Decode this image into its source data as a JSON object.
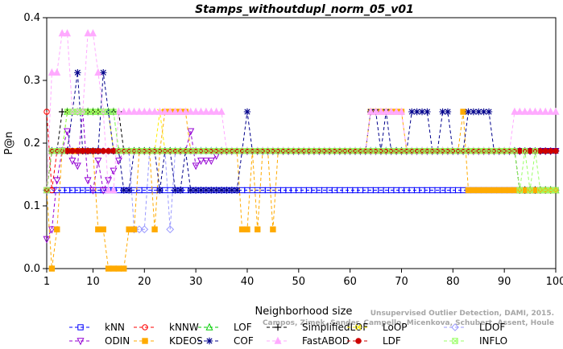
{
  "chart_data": {
    "type": "line",
    "title": "Stamps_withoutdupl_norm_05_v01",
    "xlabel": "Neighborhood size",
    "ylabel": "P@n",
    "xlim": [
      1,
      100
    ],
    "ylim": [
      0,
      0.4
    ],
    "xticks": [
      1,
      10,
      20,
      30,
      40,
      50,
      60,
      70,
      80,
      90,
      100
    ],
    "yticks": [
      0.0,
      0.1,
      0.2,
      0.3,
      0.4
    ],
    "ytick_labels": [
      "0.0",
      "0.1",
      "0.2",
      "0.3",
      "0.4"
    ],
    "credit": "Campos, Zimek, Sander, Campello, Micenkova, Schubert, Assent, Houle: On the Evaluation of Unsupervised Outlier Detection, DAMI, 2015.",
    "credit_lines": [
      "Unsupervised Outlier Detection, DAMI, 2015.",
      "Campos, Zimek, Sander, Campello, Micenkova, Schubert, Assent, Houle"
    ],
    "legend_position": "bottom",
    "series": [
      {
        "name": "kNN",
        "color": "#0000ff",
        "marker": "square",
        "segments": [
          [
            1,
            100,
            0.125
          ]
        ]
      },
      {
        "name": "kNNW",
        "color": "#ff0000",
        "marker": "circle",
        "segments": [
          [
            1,
            1,
            0.25
          ],
          [
            2,
            2,
            0.125
          ],
          [
            3,
            100,
            0.1875
          ]
        ]
      },
      {
        "name": "LOF",
        "color": "#00cc00",
        "marker": "triangle",
        "segments": [
          [
            1,
            1,
            0.125
          ],
          [
            2,
            4,
            0.1875
          ],
          [
            5,
            14,
            0.25
          ],
          [
            15,
            92,
            0.1875
          ],
          [
            93,
            100,
            0.125
          ]
        ]
      },
      {
        "name": "SimplifiedLOF",
        "color": "#000000",
        "marker": "plus",
        "segments": [
          [
            1,
            1,
            0.125
          ],
          [
            2,
            3,
            0.1875
          ],
          [
            4,
            15,
            0.25
          ],
          [
            16,
            92,
            0.1875
          ],
          [
            93,
            100,
            0.125
          ]
        ]
      },
      {
        "name": "LoOP",
        "color": "#ffee00",
        "marker": "x",
        "segments": [
          [
            1,
            1,
            0.125
          ],
          [
            2,
            4,
            0.1875
          ],
          [
            5,
            13,
            0.25
          ],
          [
            14,
            22,
            0.1875
          ],
          [
            23,
            23,
            0.25
          ],
          [
            24,
            100,
            0.1875
          ]
        ]
      },
      {
        "name": "LDOF",
        "color": "#9999ff",
        "marker": "diamond",
        "segments": [
          [
            1,
            1,
            0.125
          ],
          [
            2,
            17,
            0.1875
          ],
          [
            18,
            20,
            0.0625
          ],
          [
            21,
            24,
            0.1875
          ],
          [
            25,
            25,
            0.0625
          ],
          [
            26,
            100,
            0.1875
          ]
        ]
      },
      {
        "name": "ODIN",
        "color": "#9400d3",
        "marker": "triangle-down",
        "segments": [
          [
            1,
            1,
            0.047
          ],
          [
            2,
            2,
            0.0625
          ],
          [
            3,
            3,
            0.141
          ],
          [
            4,
            4,
            0.188
          ],
          [
            5,
            5,
            0.219
          ],
          [
            6,
            6,
            0.172
          ],
          [
            7,
            7,
            0.164
          ],
          [
            8,
            8,
            0.25
          ],
          [
            9,
            9,
            0.141
          ],
          [
            10,
            10,
            0.125
          ],
          [
            11,
            11,
            0.172
          ],
          [
            12,
            12,
            0.125
          ],
          [
            13,
            13,
            0.141
          ],
          [
            14,
            14,
            0.156
          ],
          [
            15,
            15,
            0.172
          ],
          [
            16,
            28,
            0.1875
          ],
          [
            29,
            29,
            0.219
          ],
          [
            30,
            30,
            0.164
          ],
          [
            31,
            31,
            0.172
          ],
          [
            32,
            32,
            0.172
          ],
          [
            33,
            33,
            0.172
          ],
          [
            34,
            34,
            0.18
          ],
          [
            35,
            100,
            0.1875
          ]
        ]
      },
      {
        "name": "KDEOS",
        "color": "#ffaa00",
        "marker": "square-filled",
        "segments": [
          [
            1,
            1,
            0.125
          ],
          [
            2,
            2,
            0.0
          ],
          [
            3,
            3,
            0.0625
          ],
          [
            4,
            4,
            0.1875
          ],
          [
            5,
            10,
            0.1875
          ],
          [
            11,
            12,
            0.0625
          ],
          [
            13,
            16,
            0.0
          ],
          [
            17,
            18,
            0.0625
          ],
          [
            19,
            21,
            0.1875
          ],
          [
            22,
            22,
            0.0625
          ],
          [
            23,
            23,
            0.1875
          ],
          [
            24,
            28,
            0.25
          ],
          [
            29,
            38,
            0.1875
          ],
          [
            39,
            40,
            0.0625
          ],
          [
            41,
            41,
            0.1875
          ],
          [
            42,
            42,
            0.0625
          ],
          [
            43,
            44,
            0.1875
          ],
          [
            45,
            45,
            0.0625
          ],
          [
            46,
            63,
            0.1875
          ],
          [
            64,
            70,
            0.25
          ],
          [
            71,
            81,
            0.1875
          ],
          [
            82,
            82,
            0.25
          ],
          [
            83,
            90,
            0.125
          ],
          [
            91,
            100,
            0.125
          ]
        ]
      },
      {
        "name": "COF",
        "color": "#00008b",
        "marker": "asterisk",
        "segments": [
          [
            1,
            1,
            0.125
          ],
          [
            2,
            5,
            0.1875
          ],
          [
            6,
            6,
            0.25
          ],
          [
            7,
            7,
            0.3125
          ],
          [
            8,
            11,
            0.1875
          ],
          [
            12,
            12,
            0.3125
          ],
          [
            13,
            13,
            0.25
          ],
          [
            14,
            15,
            0.1875
          ],
          [
            16,
            17,
            0.125
          ],
          [
            18,
            22,
            0.1875
          ],
          [
            23,
            23,
            0.125
          ],
          [
            24,
            25,
            0.1875
          ],
          [
            26,
            27,
            0.125
          ],
          [
            28,
            28,
            0.1875
          ],
          [
            29,
            38,
            0.125
          ],
          [
            39,
            39,
            0.1875
          ],
          [
            40,
            40,
            0.25
          ],
          [
            41,
            41,
            0.1875
          ],
          [
            42,
            63,
            0.1875
          ],
          [
            64,
            65,
            0.25
          ],
          [
            66,
            66,
            0.1875
          ],
          [
            67,
            67,
            0.25
          ],
          [
            68,
            71,
            0.1875
          ],
          [
            72,
            75,
            0.25
          ],
          [
            76,
            77,
            0.1875
          ],
          [
            78,
            79,
            0.25
          ],
          [
            80,
            81,
            0.1875
          ],
          [
            82,
            82,
            0.1875
          ],
          [
            83,
            87,
            0.25
          ],
          [
            88,
            100,
            0.1875
          ]
        ]
      },
      {
        "name": "FastABOD",
        "color": "#ffaaff",
        "marker": "triangle-filled",
        "segments": [
          [
            1,
            1,
            0.125
          ],
          [
            2,
            3,
            0.3125
          ],
          [
            4,
            5,
            0.375
          ],
          [
            6,
            8,
            0.25
          ],
          [
            9,
            10,
            0.375
          ],
          [
            11,
            11,
            0.3125
          ],
          [
            12,
            12,
            0.25
          ],
          [
            13,
            14,
            0.125
          ],
          [
            15,
            16,
            0.25
          ],
          [
            17,
            35,
            0.25
          ],
          [
            36,
            63,
            0.1875
          ],
          [
            64,
            70,
            0.25
          ],
          [
            71,
            91,
            0.1875
          ],
          [
            92,
            100,
            0.25
          ]
        ]
      },
      {
        "name": "LDF",
        "color": "#cc0000",
        "marker": "circle-filled",
        "segments": [
          [
            1,
            1,
            0.125
          ],
          [
            2,
            2,
            0.1875
          ],
          [
            3,
            100,
            0.1875
          ]
        ]
      },
      {
        "name": "INFLO",
        "color": "#99ff66",
        "marker": "x-box",
        "segments": [
          [
            1,
            1,
            0.125
          ],
          [
            2,
            4,
            0.1875
          ],
          [
            5,
            14,
            0.25
          ],
          [
            15,
            92,
            0.1875
          ],
          [
            93,
            93,
            0.125
          ],
          [
            94,
            94,
            0.1875
          ],
          [
            95,
            95,
            0.125
          ],
          [
            96,
            96,
            0.1875
          ],
          [
            97,
            100,
            0.125
          ]
        ]
      }
    ]
  },
  "legend": {
    "rows": [
      [
        "kNN",
        "kNNW",
        "LOF",
        "SimplifiedLOF",
        "LoOP",
        "LDOF"
      ],
      [
        "ODIN",
        "KDEOS",
        "COF",
        "FastABOD",
        "LDF",
        "INFLO"
      ]
    ]
  }
}
